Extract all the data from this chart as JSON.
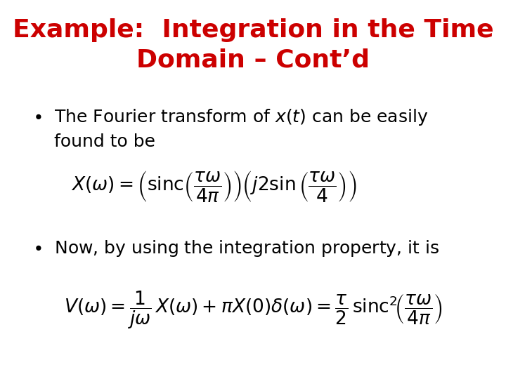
{
  "title_line1": "Example:  Integration in the Time",
  "title_line2": "Domain – Cont’d",
  "title_color": "#cc0000",
  "title_fontsize": 26,
  "bg_color": "#ffffff",
  "body_fontsize": 18,
  "formula_fontsize": 19,
  "bullet1_line1": "The Fourier transform of $x(t)$ can be easily",
  "bullet1_line2": "found to be",
  "bullet2": "Now, by using the integration property, it is",
  "formula1": "$X(\\omega) = \\left( \\mathrm{sinc}\\left(\\dfrac{\\tau\\omega}{4\\pi}\\right)\\right)\\left( j2\\sin\\left(\\dfrac{\\tau\\omega}{4}\\right)\\right)$",
  "formula2": "$V(\\omega) = \\dfrac{1}{j\\omega}\\,X(\\omega) + \\pi X(0)\\delta(\\omega) = \\dfrac{\\tau}{2}\\,\\mathrm{sinc}^2\\!\\left(\\dfrac{\\tau\\omega}{4\\pi}\\right)$"
}
